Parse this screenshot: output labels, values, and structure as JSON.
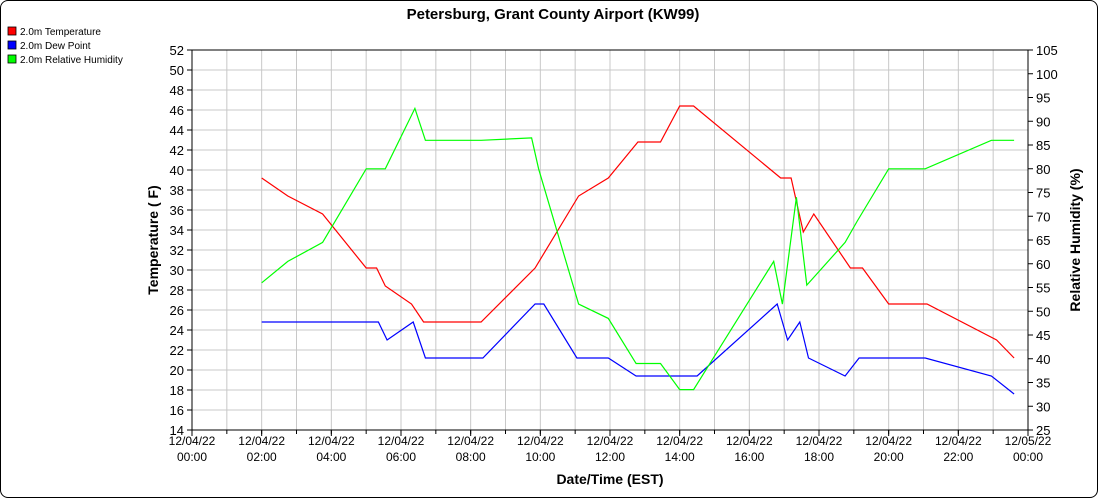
{
  "chart_data": {
    "type": "line",
    "title": "Petersburg, Grant County Airport (KW99)",
    "xlabel": "Date/Time (EST)",
    "ylabel": "Temperature ( F)",
    "y2label": "Relative Humidity (%)",
    "ylim": [
      14,
      52
    ],
    "y2lim": [
      25,
      105
    ],
    "y_ticks": [
      14,
      16,
      18,
      20,
      22,
      24,
      26,
      28,
      30,
      32,
      34,
      36,
      38,
      40,
      42,
      44,
      46,
      48,
      50,
      52
    ],
    "y2_ticks": [
      25,
      30,
      35,
      40,
      45,
      50,
      55,
      60,
      65,
      70,
      75,
      80,
      85,
      90,
      95,
      100,
      105
    ],
    "x_range_hours": [
      0,
      24
    ],
    "x_tick_labels": [
      {
        "hour": 0,
        "date": "12/04/22",
        "time": "00:00"
      },
      {
        "hour": 2,
        "date": "12/04/22",
        "time": "02:00"
      },
      {
        "hour": 4,
        "date": "12/04/22",
        "time": "04:00"
      },
      {
        "hour": 6,
        "date": "12/04/22",
        "time": "06:00"
      },
      {
        "hour": 8,
        "date": "12/04/22",
        "time": "08:00"
      },
      {
        "hour": 10,
        "date": "12/04/22",
        "time": "10:00"
      },
      {
        "hour": 12,
        "date": "12/04/22",
        "time": "12:00"
      },
      {
        "hour": 14,
        "date": "12/04/22",
        "time": "14:00"
      },
      {
        "hour": 16,
        "date": "12/04/22",
        "time": "16:00"
      },
      {
        "hour": 18,
        "date": "12/04/22",
        "time": "18:00"
      },
      {
        "hour": 20,
        "date": "12/04/22",
        "time": "20:00"
      },
      {
        "hour": 22,
        "date": "12/04/22",
        "time": "22:00"
      },
      {
        "hour": 24,
        "date": "12/05/22",
        "time": "00:00"
      }
    ],
    "grid": true,
    "legend_position": "top-left",
    "series": [
      {
        "name": "2.0m Temperature",
        "color": "#ff0000",
        "axis": "left",
        "points": [
          [
            2.0,
            39.2
          ],
          [
            2.75,
            37.4
          ],
          [
            3.75,
            35.6
          ],
          [
            5.0,
            30.2
          ],
          [
            5.3,
            30.2
          ],
          [
            5.55,
            28.4
          ],
          [
            6.3,
            26.6
          ],
          [
            6.65,
            24.8
          ],
          [
            8.3,
            24.8
          ],
          [
            9.85,
            30.2
          ],
          [
            11.1,
            37.4
          ],
          [
            11.95,
            39.2
          ],
          [
            12.8,
            42.8
          ],
          [
            13.45,
            42.8
          ],
          [
            14.0,
            46.4
          ],
          [
            14.4,
            46.4
          ],
          [
            16.9,
            39.2
          ],
          [
            17.2,
            39.2
          ],
          [
            17.55,
            33.8
          ],
          [
            17.85,
            35.6
          ],
          [
            18.9,
            30.2
          ],
          [
            19.25,
            30.2
          ],
          [
            20.0,
            26.6
          ],
          [
            21.1,
            26.6
          ],
          [
            23.1,
            23.0
          ],
          [
            23.6,
            21.2
          ]
        ]
      },
      {
        "name": "2.0m Dew Point",
        "color": "#0000ff",
        "axis": "left",
        "points": [
          [
            2.0,
            24.8
          ],
          [
            5.35,
            24.8
          ],
          [
            5.6,
            23.0
          ],
          [
            6.35,
            24.8
          ],
          [
            6.7,
            21.2
          ],
          [
            8.35,
            21.2
          ],
          [
            9.85,
            26.6
          ],
          [
            10.1,
            26.6
          ],
          [
            11.05,
            21.2
          ],
          [
            11.95,
            21.2
          ],
          [
            12.75,
            19.4
          ],
          [
            14.5,
            19.4
          ],
          [
            16.8,
            26.6
          ],
          [
            17.1,
            23.0
          ],
          [
            17.45,
            24.8
          ],
          [
            17.7,
            21.2
          ],
          [
            18.75,
            19.4
          ],
          [
            19.15,
            21.2
          ],
          [
            21.05,
            21.2
          ],
          [
            22.95,
            19.4
          ],
          [
            23.6,
            17.6
          ]
        ]
      },
      {
        "name": "2.0m Relative Humidity",
        "color": "#00ff00",
        "axis": "right",
        "points": [
          [
            2.0,
            56.0
          ],
          [
            2.75,
            60.5
          ],
          [
            3.75,
            64.5
          ],
          [
            5.0,
            80.0
          ],
          [
            5.55,
            80.0
          ],
          [
            6.4,
            92.7
          ],
          [
            6.7,
            86.0
          ],
          [
            8.3,
            86.0
          ],
          [
            9.75,
            86.5
          ],
          [
            9.95,
            80.0
          ],
          [
            11.1,
            51.5
          ],
          [
            11.95,
            48.5
          ],
          [
            12.75,
            39.0
          ],
          [
            13.45,
            39.0
          ],
          [
            14.0,
            33.5
          ],
          [
            14.4,
            33.5
          ],
          [
            16.7,
            60.5
          ],
          [
            16.95,
            51.5
          ],
          [
            17.35,
            74.0
          ],
          [
            17.65,
            55.5
          ],
          [
            18.75,
            64.5
          ],
          [
            19.1,
            69.0
          ],
          [
            20.0,
            80.0
          ],
          [
            21.05,
            80.0
          ],
          [
            22.95,
            86.0
          ],
          [
            23.6,
            86.0
          ]
        ]
      }
    ]
  }
}
